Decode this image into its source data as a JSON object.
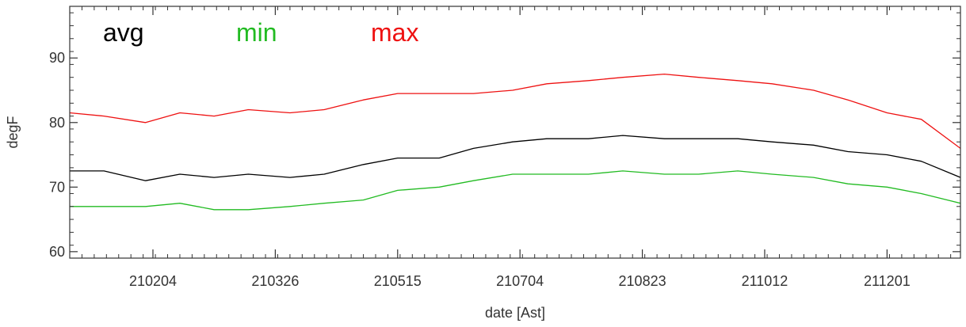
{
  "chart_data": {
    "type": "line",
    "x_start": "210101",
    "x_end": "211231",
    "xlabel": "date [Ast]",
    "ylabel": "degF",
    "ylim": [
      59,
      98
    ],
    "yticks": [
      60,
      70,
      80,
      90
    ],
    "xticks": [
      {
        "date": "210204",
        "label": "210204"
      },
      {
        "date": "210326",
        "label": "210326"
      },
      {
        "date": "210515",
        "label": "210515"
      },
      {
        "date": "210704",
        "label": "210704"
      },
      {
        "date": "210823",
        "label": "210823"
      },
      {
        "date": "211012",
        "label": "211012"
      },
      {
        "date": "211201",
        "label": "211201"
      }
    ],
    "grid": false,
    "legend_placement": "top-left",
    "series": [
      {
        "name": "avg",
        "color": "#000000",
        "points": [
          [
            "210101",
            72.5
          ],
          [
            "210115",
            72.5
          ],
          [
            "210201",
            71.0
          ],
          [
            "210215",
            72.0
          ],
          [
            "210301",
            71.5
          ],
          [
            "210315",
            72.0
          ],
          [
            "210401",
            71.5
          ],
          [
            "210415",
            72.0
          ],
          [
            "210501",
            73.5
          ],
          [
            "210515",
            74.5
          ],
          [
            "210601",
            74.5
          ],
          [
            "210615",
            76.0
          ],
          [
            "210701",
            77.0
          ],
          [
            "210715",
            77.5
          ],
          [
            "210801",
            77.5
          ],
          [
            "210815",
            78.0
          ],
          [
            "210901",
            77.5
          ],
          [
            "210915",
            77.5
          ],
          [
            "211001",
            77.5
          ],
          [
            "211015",
            77.0
          ],
          [
            "211101",
            76.5
          ],
          [
            "211115",
            75.5
          ],
          [
            "211201",
            75.0
          ],
          [
            "211215",
            74.0
          ],
          [
            "211231",
            71.5
          ]
        ]
      },
      {
        "name": "min",
        "color": "#22bb22",
        "points": [
          [
            "210101",
            67.0
          ],
          [
            "210115",
            67.0
          ],
          [
            "210201",
            67.0
          ],
          [
            "210215",
            67.5
          ],
          [
            "210301",
            66.5
          ],
          [
            "210315",
            66.5
          ],
          [
            "210401",
            67.0
          ],
          [
            "210415",
            67.5
          ],
          [
            "210501",
            68.0
          ],
          [
            "210515",
            69.5
          ],
          [
            "210601",
            70.0
          ],
          [
            "210615",
            71.0
          ],
          [
            "210701",
            72.0
          ],
          [
            "210715",
            72.0
          ],
          [
            "210801",
            72.0
          ],
          [
            "210815",
            72.5
          ],
          [
            "210901",
            72.0
          ],
          [
            "210915",
            72.0
          ],
          [
            "211001",
            72.5
          ],
          [
            "211015",
            72.0
          ],
          [
            "211101",
            71.5
          ],
          [
            "211115",
            70.5
          ],
          [
            "211201",
            70.0
          ],
          [
            "211215",
            69.0
          ],
          [
            "211231",
            67.5
          ]
        ]
      },
      {
        "name": "max",
        "color": "#ee1111",
        "points": [
          [
            "210101",
            81.5
          ],
          [
            "210115",
            81.0
          ],
          [
            "210201",
            80.0
          ],
          [
            "210215",
            81.5
          ],
          [
            "210301",
            81.0
          ],
          [
            "210315",
            82.0
          ],
          [
            "210401",
            81.5
          ],
          [
            "210415",
            82.0
          ],
          [
            "210501",
            83.5
          ],
          [
            "210515",
            84.5
          ],
          [
            "210601",
            84.5
          ],
          [
            "210615",
            84.5
          ],
          [
            "210701",
            85.0
          ],
          [
            "210715",
            86.0
          ],
          [
            "210801",
            86.5
          ],
          [
            "210815",
            87.0
          ],
          [
            "210901",
            87.5
          ],
          [
            "210915",
            87.0
          ],
          [
            "211001",
            86.5
          ],
          [
            "211015",
            86.0
          ],
          [
            "211101",
            85.0
          ],
          [
            "211115",
            83.5
          ],
          [
            "211201",
            81.5
          ],
          [
            "211215",
            80.5
          ],
          [
            "211231",
            76.0
          ]
        ]
      }
    ]
  }
}
